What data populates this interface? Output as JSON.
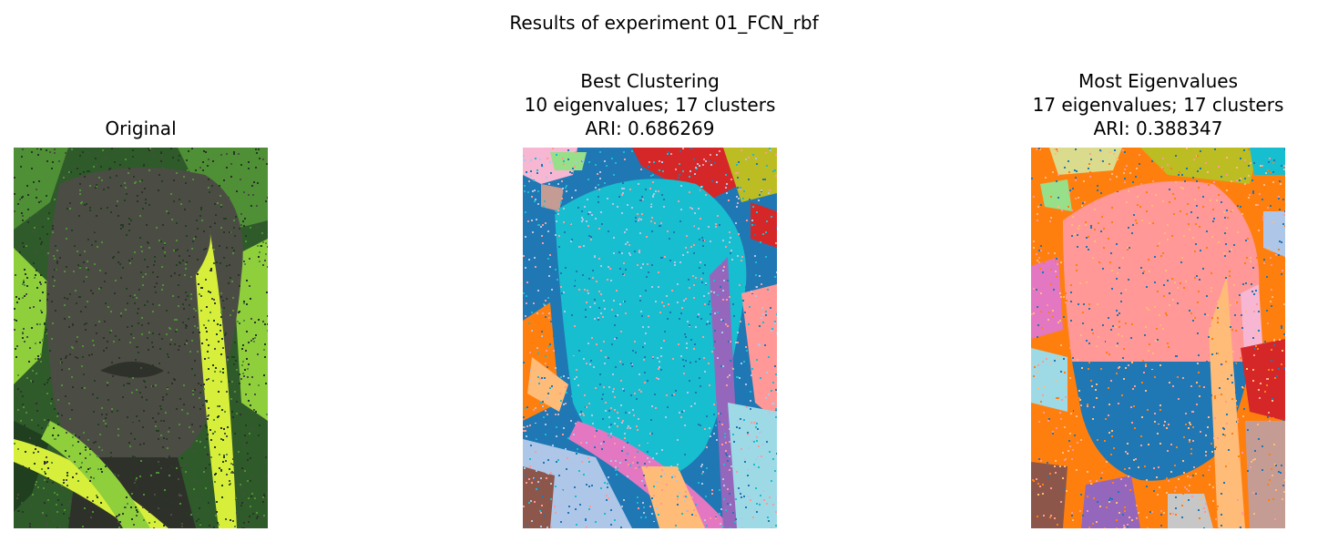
{
  "figure": {
    "suptitle": "Results of experiment 01_FCN_rbf",
    "panels": [
      {
        "lines": [
          "Original"
        ],
        "palette": {
          "bg": "#2f5a2a",
          "leafLight": "#8fcf3c",
          "leafMid": "#4f8f35",
          "leafDark": "#1f3f1f",
          "statue": "#4b4d44",
          "statueDark": "#2e302a",
          "bladeYellow": "#d7ef3a"
        }
      },
      {
        "lines": [
          "Best Clustering",
          "10 eigenvalues; 17 clusters",
          "ARI: 0.686269"
        ],
        "palette": {
          "bg": "#1f77b4",
          "face": "#17becf",
          "pink": "#f7b6d2",
          "red": "#d62728",
          "olive": "#bcbd22",
          "green": "#98df8a",
          "salmon": "#ff9896",
          "orange": "#ff7f0e",
          "purple": "#9467bd",
          "magenta": "#e377c2",
          "lightblue": "#aec7e8",
          "cyanlight": "#9edae5",
          "brown": "#8c564b",
          "peach": "#ffbb78",
          "tan": "#c49c94"
        }
      },
      {
        "lines": [
          "Most Eigenvalues",
          "17 eigenvalues; 17 clusters",
          "ARI: 0.388347"
        ],
        "palette": {
          "bg": "#ff7f0e",
          "face": "#ff9896",
          "blue": "#1f77b4",
          "olive": "#bcbd22",
          "khaki": "#dbdb8d",
          "cyan": "#17becf",
          "green": "#98df8a",
          "magenta": "#e377c2",
          "cyanlight": "#9edae5",
          "red": "#d62728",
          "pink": "#f7b6d2",
          "lightblue": "#aec7e8",
          "peach": "#ffbb78",
          "brown": "#8c564b",
          "purple": "#9467bd",
          "gray": "#c7c7c7",
          "tan": "#c49c94"
        }
      }
    ]
  }
}
